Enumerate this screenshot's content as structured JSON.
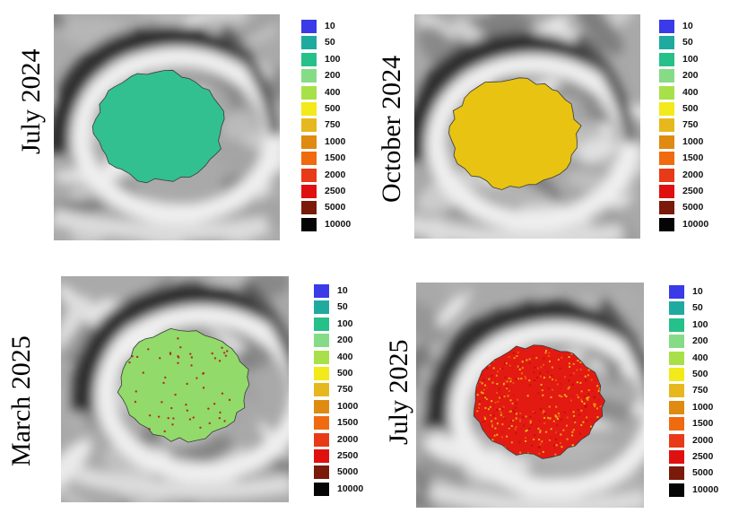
{
  "panels": [
    {
      "label": "July 2024",
      "state": "low-uniform",
      "dominant_color": "#2fbf8a"
    },
    {
      "label": "October 2024",
      "state": "medium-uniform",
      "dominant_color": "#e8c010"
    },
    {
      "label": "March 2025",
      "state": "medium-with-samples",
      "dominant_color": "#8edc6a"
    },
    {
      "label": "July 2025",
      "state": "high-heterogeneous",
      "dominant_color": "#d81010"
    }
  ],
  "legend": {
    "classes": [
      "10",
      "50",
      "100",
      "200",
      "400",
      "500",
      "750",
      "1000",
      "1500",
      "2000",
      "2500",
      "5000",
      "10000"
    ],
    "colors": [
      "#3a3ae8",
      "#1faaa0",
      "#26c08a",
      "#86dc86",
      "#a8e04a",
      "#f2ea1a",
      "#e6b81e",
      "#df8a10",
      "#f06a10",
      "#e83a18",
      "#e01010",
      "#7a1a0a",
      "#050505"
    ]
  }
}
